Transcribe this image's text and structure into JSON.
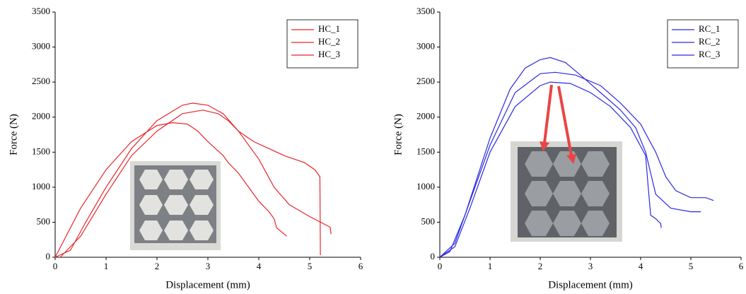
{
  "chart_data": [
    {
      "type": "line",
      "xlabel": "Displacement (mm)",
      "ylabel": "Force (N)",
      "xlim": [
        0,
        6
      ],
      "ylim": [
        0,
        3500
      ],
      "xticks": [
        0,
        1,
        2,
        3,
        4,
        5,
        6
      ],
      "yticks": [
        0,
        500,
        1000,
        1500,
        2000,
        2500,
        3000,
        3500
      ],
      "legend": "upper right",
      "series": [
        {
          "name": "HC_1",
          "color": "#e8262b",
          "x": [
            0,
            0.5,
            1,
            1.5,
            2,
            2.3,
            2.6,
            2.8,
            3.0,
            3.3,
            3.4,
            3.6,
            3.8,
            4.0,
            4.2,
            4.3,
            4.35,
            4.5,
            4.55
          ],
          "values": [
            0,
            700,
            1250,
            1650,
            1880,
            1920,
            1900,
            1800,
            1650,
            1450,
            1350,
            1200,
            1000,
            800,
            650,
            550,
            420,
            330,
            300
          ]
        },
        {
          "name": "HC_2",
          "color": "#e8262b",
          "x": [
            0,
            0.3,
            0.6,
            1,
            1.5,
            2,
            2.5,
            2.7,
            3,
            3.3,
            3.6,
            4,
            4.3,
            4.6,
            5,
            5.4,
            5.42
          ],
          "values": [
            0,
            100,
            500,
            1000,
            1550,
            1950,
            2170,
            2200,
            2170,
            2050,
            1800,
            1400,
            1000,
            750,
            580,
            430,
            330
          ]
        },
        {
          "name": "HC_3",
          "color": "#e8262b",
          "x": [
            0.1,
            0.5,
            1,
            1.5,
            2,
            2.5,
            2.9,
            3.2,
            3.4,
            3.6,
            3.9,
            4.2,
            4.5,
            4.9,
            5.1,
            5.2,
            5.21
          ],
          "values": [
            0,
            300,
            900,
            1450,
            1800,
            2050,
            2100,
            2050,
            1950,
            1800,
            1650,
            1550,
            1450,
            1350,
            1250,
            1150,
            30
          ]
        }
      ]
    },
    {
      "type": "line",
      "xlabel": "Displacement (mm)",
      "ylabel": "Force (N)",
      "xlim": [
        0,
        6
      ],
      "ylim": [
        0,
        3500
      ],
      "xticks": [
        0,
        1,
        2,
        3,
        4,
        5,
        6
      ],
      "yticks": [
        0,
        500,
        1000,
        1500,
        2000,
        2500,
        3000,
        3500
      ],
      "legend": "upper right",
      "series": [
        {
          "name": "RC_1",
          "color": "#2a2ae0",
          "x": [
            0,
            0.2,
            0.5,
            1,
            1.4,
            1.7,
            2,
            2.2,
            2.5,
            2.8,
            3.2,
            3.6,
            3.9,
            4.1,
            4.2,
            4.3,
            4.45,
            4.6,
            5,
            5.2
          ],
          "values": [
            0,
            80,
            600,
            1700,
            2400,
            2700,
            2820,
            2850,
            2780,
            2600,
            2350,
            2100,
            1850,
            1500,
            1200,
            900,
            800,
            700,
            650,
            650
          ]
        },
        {
          "name": "RC_2",
          "color": "#2a2ae0",
          "x": [
            0,
            0.3,
            0.6,
            1,
            1.5,
            2,
            2.3,
            2.7,
            3.2,
            3.6,
            4,
            4.3,
            4.5,
            4.7,
            5,
            5.3,
            5.45
          ],
          "values": [
            0,
            200,
            800,
            1600,
            2350,
            2620,
            2640,
            2600,
            2450,
            2200,
            1900,
            1500,
            1150,
            950,
            850,
            850,
            810
          ]
        },
        {
          "name": "RC_3",
          "color": "#2a2ae0",
          "x": [
            0,
            0.3,
            0.6,
            1,
            1.5,
            2,
            2.2,
            2.6,
            3,
            3.4,
            3.8,
            4.1,
            4.15,
            4.2,
            4.3,
            4.4,
            4.41
          ],
          "values": [
            0,
            150,
            700,
            1500,
            2150,
            2450,
            2500,
            2480,
            2350,
            2150,
            1850,
            1450,
            1000,
            600,
            550,
            480,
            420
          ]
        }
      ]
    }
  ]
}
